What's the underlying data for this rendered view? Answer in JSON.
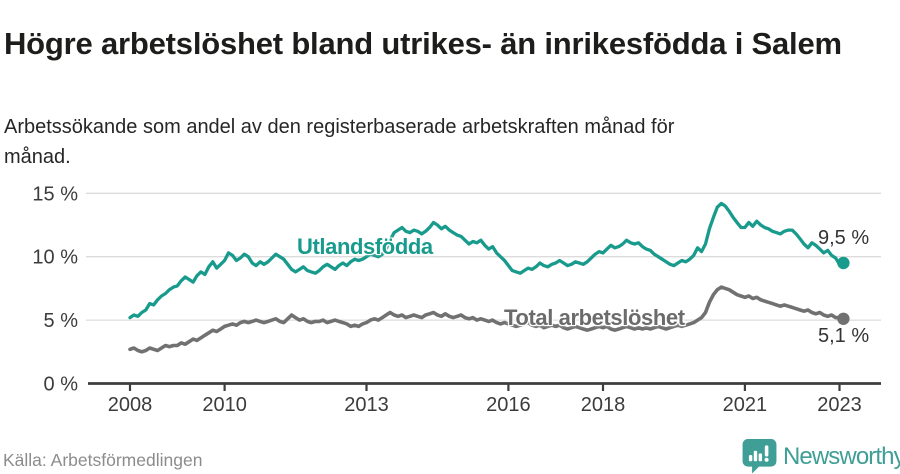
{
  "header": {
    "title": "Högre arbetslöshet bland utrikes- än inrikesfödda i Salem",
    "subtitle": "Arbetssökande som andel av den registerbaserade arbetskraften månad för månad."
  },
  "footer": {
    "source": "Källa: Arbetsförmedlingen",
    "brand": "Newsworthy",
    "brand_icon": "speech-bubble-with-bar-chart-and-exclamation"
  },
  "colors": {
    "foreign_born_line": "#189b8c",
    "total_line": "#717171",
    "axis_text": "#3c3c3c",
    "grid": "#dcdcdc",
    "axis_line": "#3d3d3d",
    "title_text": "#1d1d1b",
    "source_text": "#8c8c8c",
    "brand_teal": "#3f9e95"
  },
  "chart_data": {
    "type": "line",
    "title": "Högre arbetslöshet bland utrikes- än inrikesfödda i Salem",
    "xlabel": "",
    "ylabel": "%",
    "x_unit": "month",
    "x_start": "2008-01",
    "x_end": "2023-02",
    "x_ticks": [
      2008,
      2010,
      2013,
      2016,
      2018,
      2021,
      2023
    ],
    "y_ticks": [
      {
        "value": 0,
        "label": "0 %"
      },
      {
        "value": 5,
        "label": "5 %"
      },
      {
        "value": 10,
        "label": "10 %"
      },
      {
        "value": 15,
        "label": "15 %"
      }
    ],
    "ylim": [
      0,
      15.8
    ],
    "grid": "horizontal",
    "legend": "inline-labels",
    "series": [
      {
        "name": "Utlandsfödda",
        "color": "#189b8c",
        "end_label": "9,5 %",
        "end_value": 9.5,
        "values": [
          5.2,
          5.4,
          5.3,
          5.6,
          5.8,
          6.3,
          6.2,
          6.6,
          6.9,
          7.1,
          7.4,
          7.6,
          7.7,
          8.1,
          8.4,
          8.2,
          8.0,
          8.5,
          8.8,
          8.6,
          9.2,
          9.6,
          9.1,
          9.4,
          9.7,
          10.3,
          10.1,
          9.7,
          9.9,
          10.2,
          10.0,
          9.5,
          9.3,
          9.6,
          9.4,
          9.6,
          9.9,
          10.2,
          10.0,
          9.8,
          9.4,
          9.0,
          8.8,
          9.0,
          9.2,
          8.9,
          8.8,
          8.7,
          8.9,
          9.2,
          9.4,
          9.2,
          9.0,
          9.3,
          9.5,
          9.3,
          9.6,
          9.8,
          9.7,
          9.8,
          10.0,
          10.2,
          10.1,
          10.0,
          10.2,
          10.6,
          11.3,
          11.9,
          12.1,
          12.3,
          12.0,
          11.9,
          12.1,
          12.0,
          11.8,
          12.0,
          12.3,
          12.7,
          12.5,
          12.2,
          12.4,
          12.1,
          11.9,
          11.7,
          11.6,
          11.3,
          11.0,
          11.2,
          11.1,
          11.3,
          10.9,
          10.6,
          10.8,
          10.3,
          10.0,
          9.7,
          9.3,
          8.9,
          8.8,
          8.7,
          8.9,
          9.1,
          9.0,
          9.2,
          9.5,
          9.3,
          9.2,
          9.4,
          9.5,
          9.7,
          9.5,
          9.3,
          9.4,
          9.6,
          9.5,
          9.4,
          9.6,
          9.9,
          10.2,
          10.4,
          10.3,
          10.6,
          10.9,
          10.7,
          10.8,
          11.0,
          11.3,
          11.1,
          11.0,
          11.1,
          10.8,
          10.6,
          10.5,
          10.2,
          10.0,
          9.8,
          9.6,
          9.4,
          9.3,
          9.5,
          9.7,
          9.6,
          9.8,
          10.1,
          10.7,
          10.4,
          11.0,
          12.2,
          13.1,
          13.9,
          14.2,
          14.0,
          13.6,
          13.1,
          12.7,
          12.3,
          12.3,
          12.7,
          12.4,
          12.8,
          12.5,
          12.3,
          12.2,
          12.0,
          11.9,
          11.8,
          12.0,
          12.1,
          12.1,
          11.8,
          11.4,
          11.0,
          10.7,
          11.1,
          10.9,
          10.6,
          10.3,
          10.5,
          10.1,
          9.9,
          9.4,
          9.5
        ]
      },
      {
        "name": "Total arbetslöshet",
        "color": "#717171",
        "end_label": "5,1 %",
        "end_value": 5.1,
        "values": [
          2.7,
          2.8,
          2.6,
          2.5,
          2.6,
          2.8,
          2.7,
          2.6,
          2.8,
          3.0,
          2.9,
          3.0,
          3.0,
          3.2,
          3.1,
          3.3,
          3.5,
          3.4,
          3.6,
          3.8,
          4.0,
          4.2,
          4.1,
          4.3,
          4.5,
          4.6,
          4.7,
          4.6,
          4.8,
          4.9,
          4.8,
          4.9,
          5.0,
          4.9,
          4.8,
          4.9,
          5.0,
          5.1,
          4.9,
          4.8,
          5.1,
          5.4,
          5.2,
          5.0,
          5.1,
          4.9,
          4.8,
          4.9,
          4.9,
          5.0,
          4.8,
          4.9,
          5.0,
          4.9,
          4.8,
          4.7,
          4.5,
          4.6,
          4.5,
          4.7,
          4.8,
          5.0,
          5.1,
          5.0,
          5.2,
          5.4,
          5.6,
          5.4,
          5.3,
          5.4,
          5.2,
          5.3,
          5.4,
          5.3,
          5.2,
          5.4,
          5.5,
          5.6,
          5.4,
          5.3,
          5.5,
          5.3,
          5.2,
          5.3,
          5.4,
          5.2,
          5.1,
          5.2,
          5.0,
          5.1,
          5.0,
          4.9,
          5.0,
          4.8,
          4.7,
          4.8,
          4.7,
          4.6,
          4.5,
          4.6,
          4.7,
          4.8,
          4.6,
          4.5,
          4.6,
          4.4,
          4.5,
          4.6,
          4.5,
          4.6,
          4.4,
          4.3,
          4.4,
          4.5,
          4.4,
          4.3,
          4.2,
          4.3,
          4.4,
          4.5,
          4.4,
          4.5,
          4.3,
          4.2,
          4.3,
          4.4,
          4.5,
          4.4,
          4.3,
          4.4,
          4.3,
          4.4,
          4.3,
          4.4,
          4.5,
          4.4,
          4.3,
          4.4,
          4.5,
          4.6,
          4.5,
          4.6,
          4.7,
          4.8,
          5.0,
          5.2,
          5.6,
          6.4,
          7.0,
          7.4,
          7.6,
          7.5,
          7.4,
          7.2,
          7.0,
          6.9,
          6.8,
          6.9,
          6.7,
          6.8,
          6.6,
          6.5,
          6.4,
          6.3,
          6.2,
          6.1,
          6.2,
          6.1,
          6.0,
          5.9,
          5.8,
          5.7,
          5.8,
          5.6,
          5.5,
          5.6,
          5.4,
          5.3,
          5.4,
          5.2,
          5.2,
          5.1
        ]
      }
    ]
  }
}
